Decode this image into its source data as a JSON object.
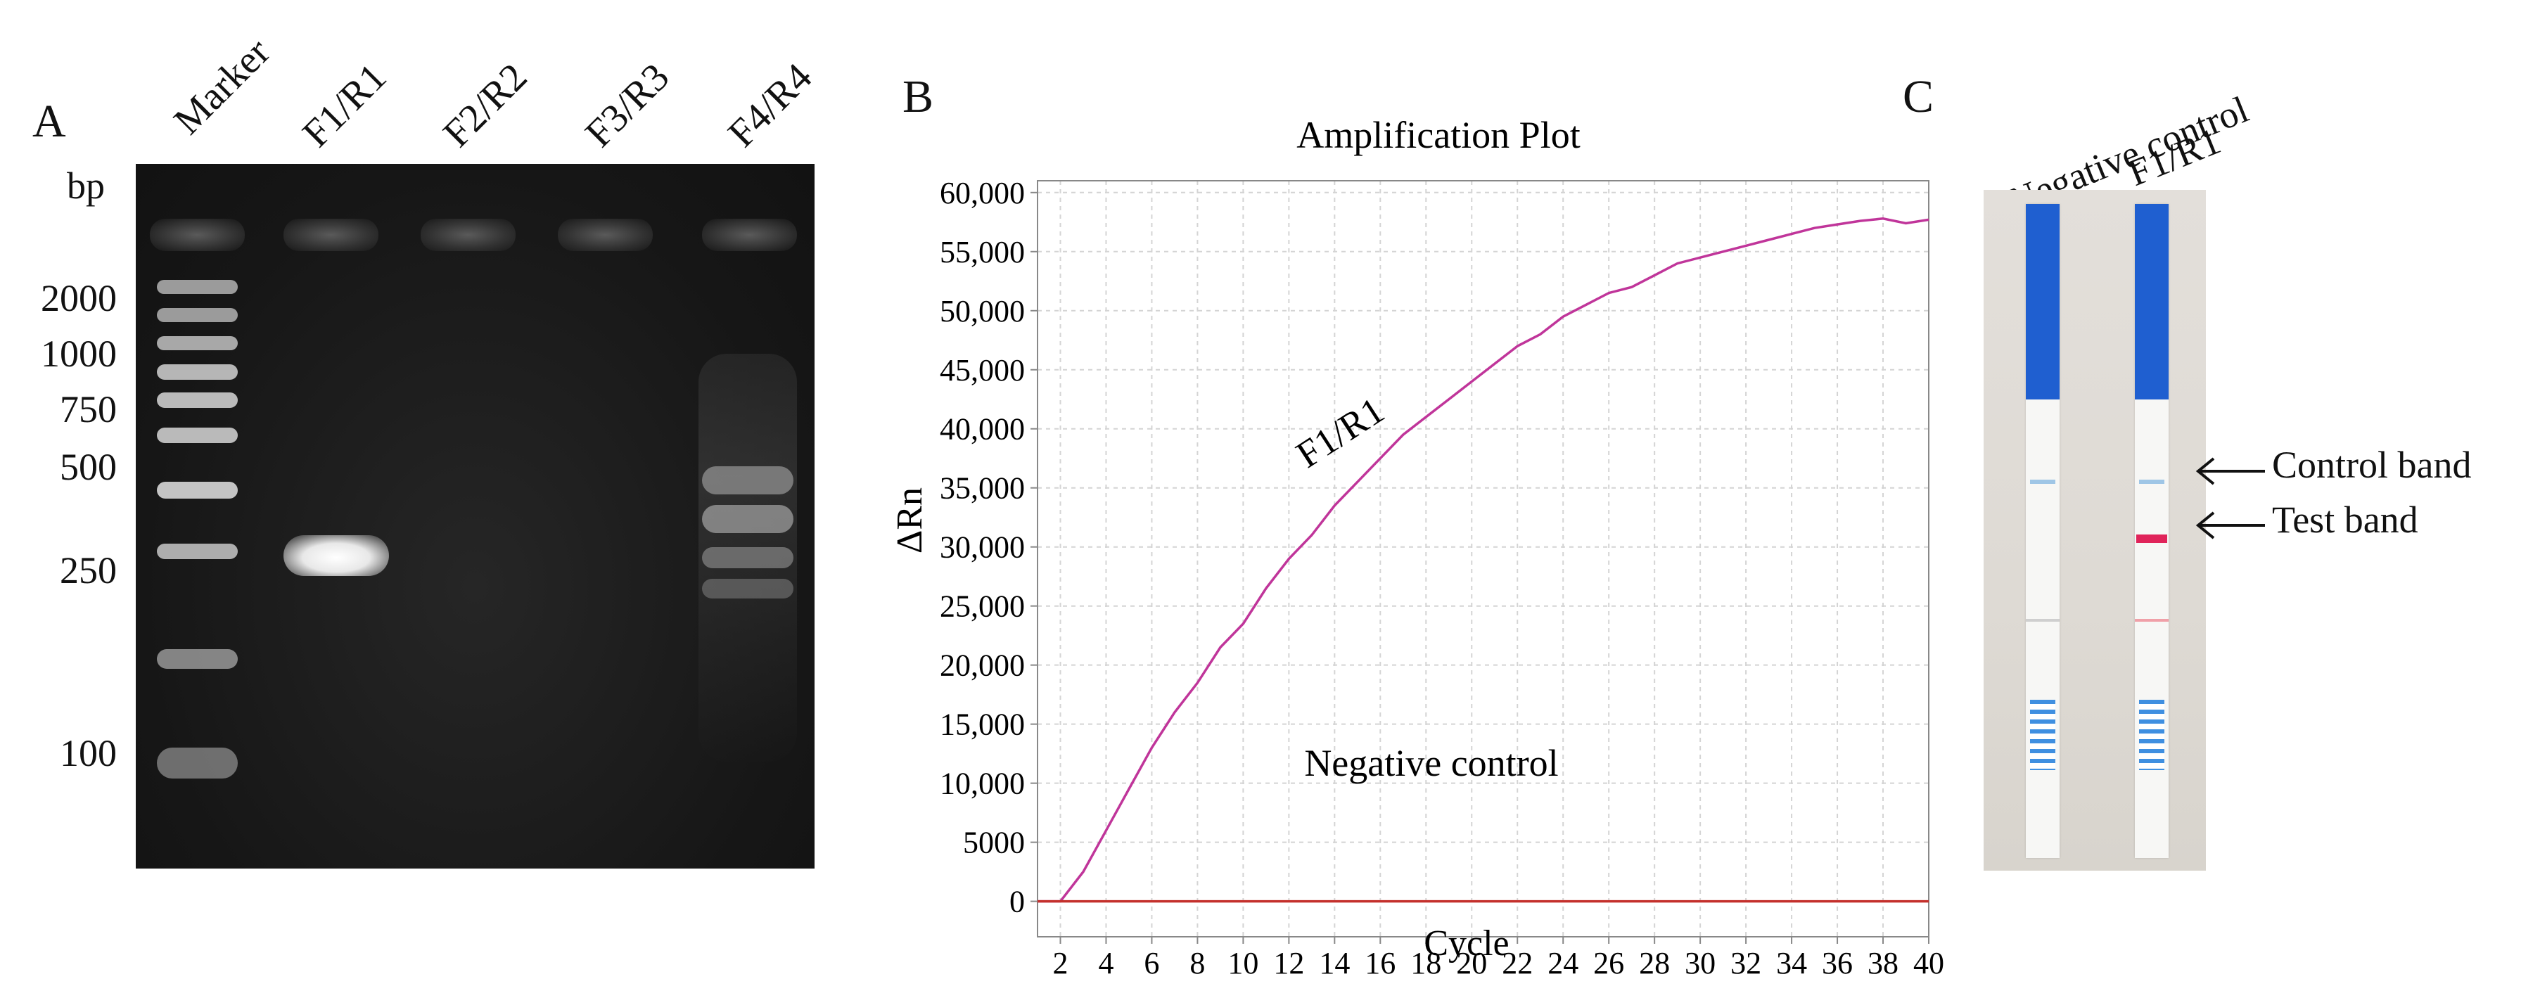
{
  "panelA": {
    "letter": "A",
    "bp_unit": "bp",
    "lanes": [
      "Marker",
      "F1/R1",
      "F2/R2",
      "F3/R3",
      "F4/R4"
    ],
    "size_markers": [
      "2000",
      "1000",
      "750",
      "500",
      "250",
      "100"
    ]
  },
  "panelB": {
    "letter": "B"
  },
  "chart_data": {
    "type": "line",
    "title": "Amplification Plot",
    "xlabel": "Cycle",
    "ylabel": "ΔRn",
    "xlim": [
      1,
      40
    ],
    "ylim": [
      -3000,
      61000
    ],
    "x_ticks": [
      2,
      4,
      6,
      8,
      10,
      12,
      14,
      16,
      18,
      20,
      22,
      24,
      26,
      28,
      30,
      32,
      34,
      36,
      38,
      40
    ],
    "y_ticks": [
      0,
      5000,
      10000,
      15000,
      20000,
      25000,
      30000,
      35000,
      40000,
      45000,
      50000,
      55000,
      60000
    ],
    "y_tick_labels": [
      "0",
      "5000",
      "10,000",
      "15,000",
      "20,000",
      "25,000",
      "30,000",
      "35,000",
      "40,000",
      "45,000",
      "50,000",
      "55,000",
      "60,000"
    ],
    "grid": true,
    "series": [
      {
        "name": "F1/R1",
        "color": "#c0359a",
        "x": [
          1,
          2,
          3,
          4,
          5,
          6,
          7,
          8,
          9,
          10,
          11,
          12,
          13,
          14,
          15,
          16,
          17,
          18,
          19,
          20,
          21,
          22,
          23,
          24,
          25,
          26,
          27,
          28,
          29,
          30,
          31,
          32,
          33,
          34,
          35,
          36,
          37,
          38,
          39,
          40
        ],
        "y": [
          0,
          0,
          2500,
          6000,
          9500,
          13000,
          16000,
          18500,
          21500,
          23500,
          26500,
          29000,
          31000,
          33500,
          35500,
          37500,
          39500,
          41000,
          42500,
          44000,
          45500,
          47000,
          48000,
          49500,
          50500,
          51500,
          52000,
          53000,
          54000,
          54500,
          55000,
          55500,
          56000,
          56500,
          57000,
          57300,
          57600,
          57800,
          57400,
          57700
        ]
      },
      {
        "name": "Negative control",
        "color": "#c4302c",
        "x": [
          1,
          2,
          3,
          4,
          5,
          6,
          7,
          8,
          9,
          10,
          11,
          12,
          13,
          14,
          15,
          16,
          17,
          18,
          19,
          20,
          21,
          22,
          23,
          24,
          25,
          26,
          27,
          28,
          29,
          30,
          31,
          32,
          33,
          34,
          35,
          36,
          37,
          38,
          39,
          40
        ],
        "y": [
          0,
          0,
          0,
          0,
          0,
          0,
          0,
          0,
          0,
          0,
          0,
          0,
          0,
          0,
          0,
          0,
          0,
          0,
          0,
          0,
          0,
          0,
          0,
          0,
          0,
          0,
          0,
          0,
          0,
          0,
          0,
          0,
          0,
          0,
          0,
          0,
          0,
          0,
          0,
          0
        ]
      }
    ]
  },
  "panelC": {
    "letter": "C",
    "strip_labels": [
      "Negative control",
      "F1/R1"
    ],
    "control_band_label": "Control band",
    "test_band_label": "Test band"
  }
}
